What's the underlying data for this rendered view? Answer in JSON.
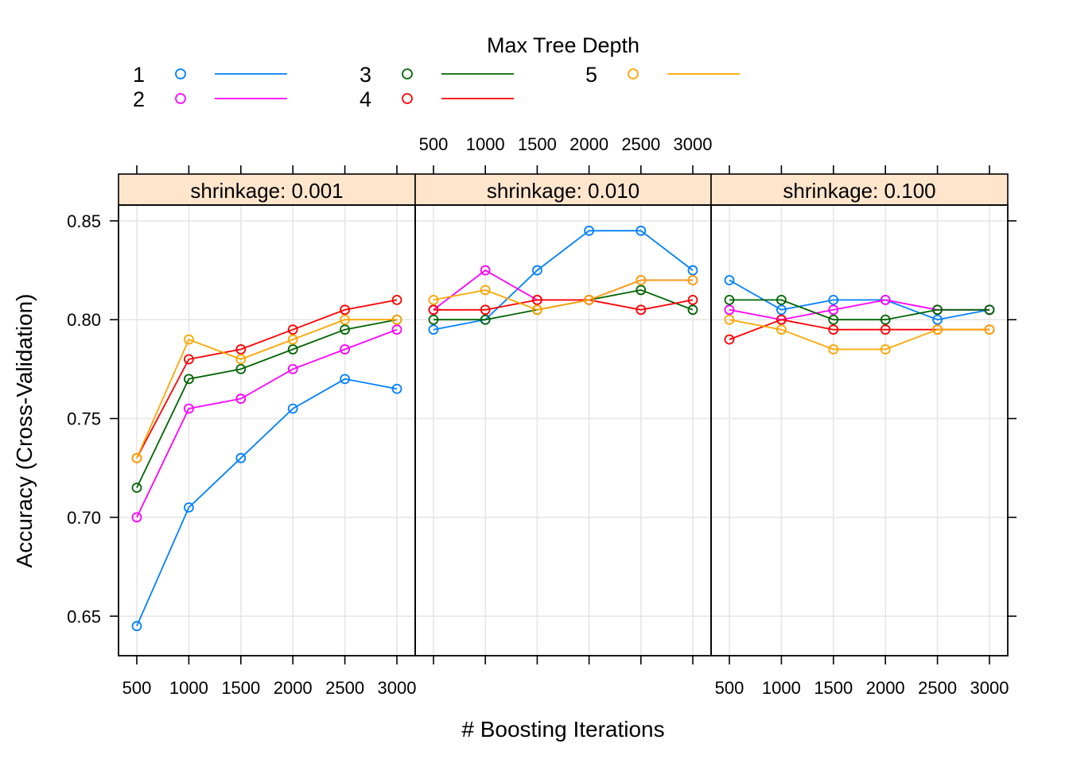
{
  "chart_data": {
    "type": "line",
    "xlabel": "# Boosting Iterations",
    "ylabel": "Accuracy (Cross-Validation)",
    "x": [
      500,
      1000,
      1500,
      2000,
      2500,
      3000
    ],
    "x_tick_labels": [
      "500",
      "1000",
      "1500",
      "2000",
      "2500",
      "3000"
    ],
    "ylim": [
      0.63,
      0.858
    ],
    "y_ticks": [
      0.65,
      0.7,
      0.75,
      0.8,
      0.85
    ],
    "y_tick_labels": [
      "0.65",
      "0.70",
      "0.75",
      "0.80",
      "0.85"
    ],
    "grid": true,
    "legend": {
      "title": "Max Tree Depth",
      "placement": "top",
      "entries": [
        {
          "label": "1",
          "color": "#0080ff"
        },
        {
          "label": "2",
          "color": "#ff00ff"
        },
        {
          "label": "3",
          "color": "#006400"
        },
        {
          "label": "4",
          "color": "#ff0000"
        },
        {
          "label": "5",
          "color": "#ffa500"
        }
      ]
    },
    "strip_color": "#ffe5cc",
    "panels": [
      {
        "strip_label": "shrinkage: 0.001",
        "series": [
          {
            "name": "1",
            "values": [
              0.645,
              0.705,
              0.73,
              0.755,
              0.77,
              0.765
            ]
          },
          {
            "name": "2",
            "values": [
              0.7,
              0.755,
              0.76,
              0.775,
              0.785,
              0.795
            ]
          },
          {
            "name": "3",
            "values": [
              0.715,
              0.77,
              0.775,
              0.785,
              0.795,
              0.8
            ]
          },
          {
            "name": "4",
            "values": [
              0.73,
              0.78,
              0.785,
              0.795,
              0.805,
              0.81
            ]
          },
          {
            "name": "5",
            "values": [
              0.73,
              0.79,
              0.78,
              0.79,
              0.8,
              0.8
            ]
          }
        ]
      },
      {
        "strip_label": "shrinkage: 0.010",
        "series": [
          {
            "name": "1",
            "values": [
              0.795,
              0.8,
              0.825,
              0.845,
              0.845,
              0.825
            ]
          },
          {
            "name": "2",
            "values": [
              0.805,
              0.825,
              0.81,
              0.81,
              0.82,
              0.82
            ]
          },
          {
            "name": "3",
            "values": [
              0.8,
              0.8,
              0.805,
              0.81,
              0.815,
              0.805
            ]
          },
          {
            "name": "4",
            "values": [
              0.805,
              0.805,
              0.81,
              0.81,
              0.805,
              0.81
            ]
          },
          {
            "name": "5",
            "values": [
              0.81,
              0.815,
              0.805,
              0.81,
              0.82,
              0.82
            ]
          }
        ]
      },
      {
        "strip_label": "shrinkage: 0.100",
        "series": [
          {
            "name": "1",
            "values": [
              0.82,
              0.805,
              0.81,
              0.81,
              0.8,
              0.805
            ]
          },
          {
            "name": "2",
            "values": [
              0.805,
              0.8,
              0.805,
              0.81,
              0.805,
              0.805
            ]
          },
          {
            "name": "3",
            "values": [
              0.81,
              0.81,
              0.8,
              0.8,
              0.805,
              0.805
            ]
          },
          {
            "name": "4",
            "values": [
              0.79,
              0.8,
              0.795,
              0.795,
              0.795,
              0.795
            ]
          },
          {
            "name": "5",
            "values": [
              0.8,
              0.795,
              0.785,
              0.785,
              0.795,
              0.795
            ]
          }
        ]
      }
    ]
  }
}
